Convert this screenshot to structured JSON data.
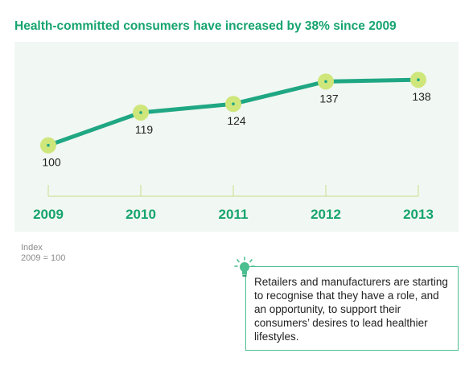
{
  "title": "Health-committed consumers have increased by 38% since 2009",
  "note_line1": "Index",
  "note_line2": "2009 = 100",
  "callout": {
    "icon": "lightbulb-icon",
    "text": "Retailers and manufacturers are starting to recognise that they have a role, and an opportunity, to support their consumers’ desires to lead healthier lifestyles."
  },
  "colors": {
    "accent": "#16a46f",
    "line": "#1fa783",
    "marker": "#cfe67a",
    "panel": "#f1f7f2",
    "axis": "#cfe3a0"
  },
  "chart_data": {
    "type": "line",
    "title": "Health-committed consumers have increased by 38% since 2009",
    "categories": [
      "2009",
      "2010",
      "2011",
      "2012",
      "2013"
    ],
    "series": [
      {
        "values": [
          100,
          119,
          124,
          137,
          138
        ]
      }
    ],
    "data_labels": [
      "100",
      "119",
      "124",
      "137",
      "138"
    ],
    "ylim": [
      50,
      160
    ],
    "grid": false,
    "legend": "none"
  }
}
